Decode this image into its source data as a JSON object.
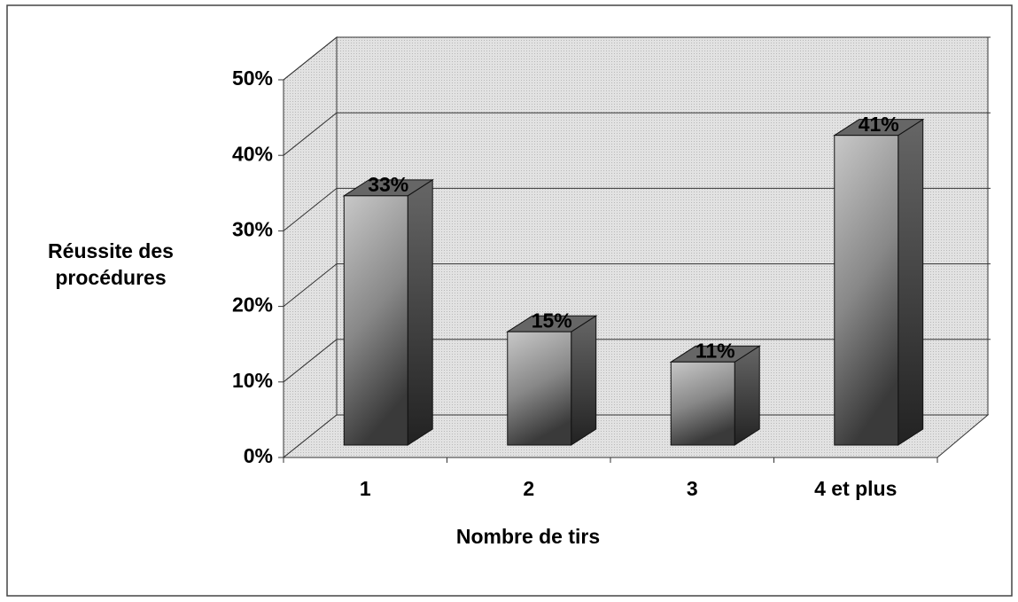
{
  "chart_data": {
    "type": "bar3d",
    "categories": [
      "1",
      "2",
      "3",
      "4 et plus"
    ],
    "values": [
      33,
      15,
      11,
      41
    ],
    "value_labels": [
      "33%",
      "15%",
      "11%",
      "41%"
    ],
    "xlabel": "Nombre de tirs",
    "ylabel": "Réussite des procédures",
    "ylim": [
      0,
      50
    ],
    "yticks": [
      {
        "value": 0,
        "label": "0%"
      },
      {
        "value": 10,
        "label": "10%"
      },
      {
        "value": 20,
        "label": "20%"
      },
      {
        "value": 30,
        "label": "30%"
      },
      {
        "value": 40,
        "label": "40%"
      },
      {
        "value": 50,
        "label": "50%"
      }
    ],
    "grid": true,
    "color": "#666666"
  }
}
